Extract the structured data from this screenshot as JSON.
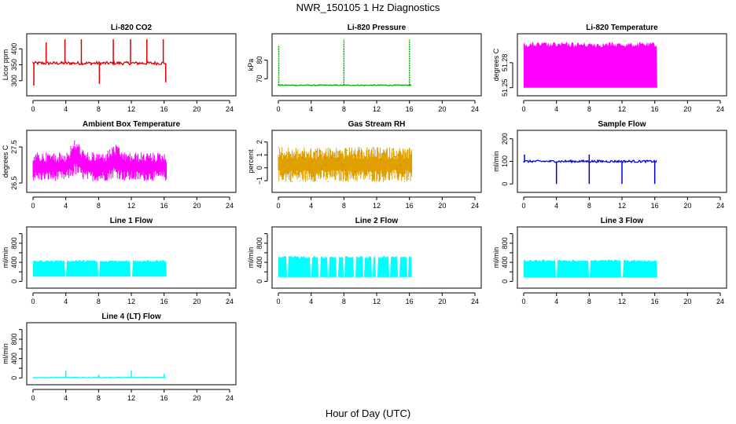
{
  "main_title": "NWR_150105  1 Hz Diagnostics",
  "x_axis_label": "Hour of Day (UTC)",
  "chart_data": [
    {
      "type": "line",
      "title": "Li-820 CO2",
      "ylabel": "Licor ppm",
      "xlim": [
        0,
        24
      ],
      "ylim": [
        265,
        435
      ],
      "xticks": [
        0,
        4,
        8,
        12,
        16,
        20,
        24
      ],
      "yticks": [
        300,
        350,
        400
      ],
      "ytick_labels": [
        "300",
        "350",
        "400"
      ],
      "color": "#dd0000",
      "data_range": [
        0,
        16.3
      ],
      "baseline": 355,
      "noise": [
        350,
        360
      ],
      "spikes": [
        {
          "x": 1.6,
          "y": 420
        },
        {
          "x": 3.9,
          "y": 430
        },
        {
          "x": 5.9,
          "y": 430
        },
        {
          "x": 8.1,
          "y": 290
        },
        {
          "x": 9.8,
          "y": 430
        },
        {
          "x": 11.9,
          "y": 430
        },
        {
          "x": 13.9,
          "y": 430
        },
        {
          "x": 15.9,
          "y": 430
        },
        {
          "x": 0.1,
          "y": 285
        },
        {
          "x": 16.2,
          "y": 295
        }
      ]
    },
    {
      "type": "line",
      "title": "Li-820 Pressure",
      "ylabel": "kPa",
      "xlim": [
        0,
        24
      ],
      "ylim": [
        63,
        92
      ],
      "xticks": [
        0,
        4,
        8,
        12,
        16,
        20,
        24
      ],
      "yticks": [
        70,
        80
      ],
      "ytick_labels": [
        "70",
        "80"
      ],
      "color": "#00aa00",
      "data_range": [
        0,
        16.3
      ],
      "baseline": 66.5,
      "noise": [
        66.3,
        66.8
      ],
      "spikes": [
        {
          "x": 0.05,
          "y": 88
        },
        {
          "x": 8.0,
          "y": 91
        },
        {
          "x": 16.0,
          "y": 91
        }
      ]
    },
    {
      "type": "area",
      "title": "Li-820 Temperature",
      "ylabel": "degrees C",
      "xlim": [
        0,
        24
      ],
      "ylim": [
        51.245,
        51.31
      ],
      "xticks": [
        0,
        4,
        8,
        12,
        16,
        20,
        24
      ],
      "yticks": [
        51.25,
        51.28
      ],
      "ytick_labels": [
        "51.25",
        "51.28"
      ],
      "color": "#ff00ff",
      "data_range": [
        0,
        16.3
      ],
      "band": [
        51.25,
        51.305
      ]
    },
    {
      "type": "line",
      "title": "Ambient Box Temperature",
      "ylabel": "degrees C",
      "xlim": [
        0,
        24
      ],
      "ylim": [
        26.35,
        27.85
      ],
      "xticks": [
        0,
        4,
        8,
        12,
        16,
        20,
        24
      ],
      "yticks": [
        26.5,
        27.5
      ],
      "ytick_labels": [
        "26.5",
        "27.5"
      ],
      "color": "#ff00ff",
      "data_range": [
        0,
        16.3
      ],
      "band": [
        26.55,
        27.35
      ],
      "bumps": [
        {
          "x": 5.2,
          "y": 27.75
        },
        {
          "x": 10.0,
          "y": 27.6
        }
      ]
    },
    {
      "type": "line",
      "title": "Gas Stream RH",
      "ylabel": "percent",
      "xlim": [
        0,
        24
      ],
      "ylim": [
        -1.6,
        2.6
      ],
      "xticks": [
        0,
        4,
        8,
        12,
        16,
        20,
        24
      ],
      "yticks": [
        -1,
        0,
        1,
        2
      ],
      "ytick_labels": [
        "−1",
        "0",
        "1",
        "2"
      ],
      "color": "#e0a000",
      "data_range": [
        0,
        16.3
      ],
      "band": [
        -1.1,
        1.6
      ]
    },
    {
      "type": "line",
      "title": "Sample Flow",
      "ylabel": "ml/min",
      "xlim": [
        0,
        24
      ],
      "ylim": [
        -20,
        220
      ],
      "xticks": [
        0,
        4,
        8,
        12,
        16,
        20,
        24
      ],
      "yticks": [
        0,
        100,
        200
      ],
      "ytick_labels": [
        "0",
        "100",
        "200"
      ],
      "color": "#0000dd",
      "data_range": [
        0,
        16.3
      ],
      "baseline": 100,
      "noise": [
        95,
        105
      ],
      "spikes": [
        {
          "x": 4.0,
          "y": 0
        },
        {
          "x": 8.0,
          "y": 0
        },
        {
          "x": 12.0,
          "y": 0
        },
        {
          "x": 16.0,
          "y": 0
        },
        {
          "x": 0.1,
          "y": 130
        },
        {
          "x": 8.0,
          "y": 130
        }
      ]
    },
    {
      "type": "area",
      "title": "Line 1 Flow",
      "ylabel": "ml/min",
      "xlim": [
        0,
        24
      ],
      "ylim": [
        -60,
        1060
      ],
      "xticks": [
        0,
        4,
        8,
        12,
        16,
        20,
        24
      ],
      "yticks": [
        0,
        200,
        400,
        600,
        800,
        1000
      ],
      "ytick_labels": [
        "0",
        "",
        "400",
        "",
        "800",
        ""
      ],
      "color": "#00ffff",
      "data_range": [
        0,
        16.3
      ],
      "band": [
        100,
        450
      ],
      "gaps": [
        4.0,
        8.0,
        12.0
      ]
    },
    {
      "type": "area",
      "title": "Line 2 Flow",
      "ylabel": "ml/min",
      "xlim": [
        0,
        24
      ],
      "ylim": [
        -60,
        1060
      ],
      "xticks": [
        0,
        4,
        8,
        12,
        16,
        20,
        24
      ],
      "yticks": [
        0,
        200,
        400,
        600,
        800,
        1000
      ],
      "ytick_labels": [
        "0",
        "",
        "400",
        "",
        "800",
        ""
      ],
      "color": "#00ffff",
      "data_range": [
        0,
        16.3
      ],
      "band": [
        90,
        540
      ],
      "gaps": [
        1.1,
        4.0,
        5.0,
        6.1,
        7.2,
        8.0,
        9.3,
        10.4,
        11.5,
        12.0,
        13.6,
        14.7,
        15.8
      ]
    },
    {
      "type": "area",
      "title": "Line 3 Flow",
      "ylabel": "ml/min",
      "xlim": [
        0,
        24
      ],
      "ylim": [
        -60,
        1060
      ],
      "xticks": [
        0,
        4,
        8,
        12,
        16,
        20,
        24
      ],
      "yticks": [
        0,
        200,
        400,
        600,
        800,
        1000
      ],
      "ytick_labels": [
        "0",
        "",
        "400",
        "",
        "800",
        ""
      ],
      "color": "#00ffff",
      "data_range": [
        0,
        16.3
      ],
      "band": [
        80,
        460
      ],
      "gaps": [
        4.0,
        8.0,
        12.0
      ]
    },
    {
      "type": "line",
      "title": "Line 4 (LT) Flow",
      "ylabel": "ml/min",
      "xlim": [
        0,
        24
      ],
      "ylim": [
        -60,
        1060
      ],
      "xticks": [
        0,
        4,
        8,
        12,
        16,
        20,
        24
      ],
      "yticks": [
        0,
        200,
        400,
        600,
        800,
        1000
      ],
      "ytick_labels": [
        "0",
        "",
        "400",
        "",
        "800",
        ""
      ],
      "color": "#00ffff",
      "data_range": [
        0,
        16.3
      ],
      "baseline": 5,
      "noise": [
        0,
        15
      ],
      "spikes": [
        {
          "x": 4.0,
          "y": 150
        },
        {
          "x": 8.0,
          "y": 70
        },
        {
          "x": 12.0,
          "y": 150
        },
        {
          "x": 16.0,
          "y": 80
        }
      ]
    }
  ]
}
